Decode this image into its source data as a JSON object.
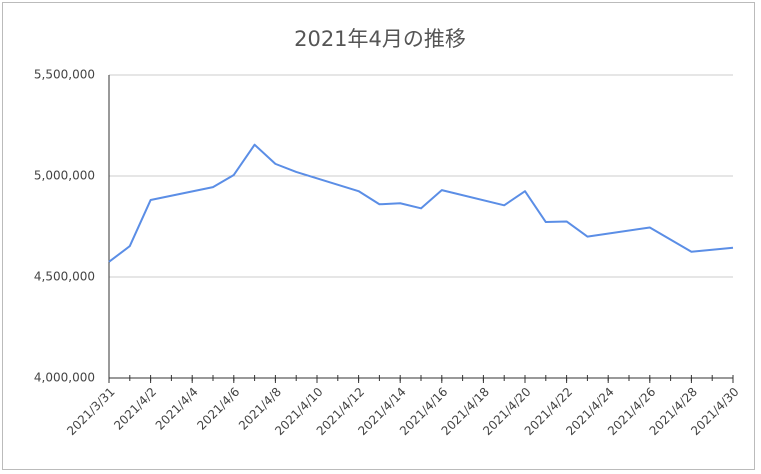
{
  "chart_data": {
    "type": "line",
    "title": "2021年4月の推移",
    "x": [
      "2021/3/31",
      "2021/4/1",
      "2021/4/2",
      "2021/4/5",
      "2021/4/6",
      "2021/4/7",
      "2021/4/8",
      "2021/4/9",
      "2021/4/12",
      "2021/4/13",
      "2021/4/14",
      "2021/4/15",
      "2021/4/16",
      "2021/4/19",
      "2021/4/20",
      "2021/4/21",
      "2021/4/22",
      "2021/4/23",
      "2021/4/26",
      "2021/4/27",
      "2021/4/28",
      "2021/4/30"
    ],
    "series": [
      {
        "color": "#5b8ee6",
        "values": [
          4575000,
          4653000,
          4881000,
          4945000,
          5005000,
          5155000,
          5060000,
          5020000,
          4925000,
          4860000,
          4865000,
          4840000,
          4930000,
          4855000,
          4925000,
          4772000,
          4775000,
          4700000,
          4745000,
          4685000,
          4625000,
          4645000
        ]
      }
    ],
    "xlim": [
      "2021/3/31",
      "2021/4/30"
    ],
    "xticks": [
      "2021/3/31",
      "2021/4/2",
      "2021/4/4",
      "2021/4/6",
      "2021/4/8",
      "2021/4/10",
      "2021/4/12",
      "2021/4/14",
      "2021/4/16",
      "2021/4/18",
      "2021/4/20",
      "2021/4/22",
      "2021/4/24",
      "2021/4/26",
      "2021/4/28",
      "2021/4/30"
    ],
    "ylim": [
      4000000,
      5500000
    ],
    "yticks": [
      {
        "value": 4000000,
        "label": "4,000,000"
      },
      {
        "value": 4500000,
        "label": "4,500,000"
      },
      {
        "value": 5000000,
        "label": "5,000,000"
      },
      {
        "value": 5500000,
        "label": "5,500,000"
      }
    ],
    "grid": true
  }
}
